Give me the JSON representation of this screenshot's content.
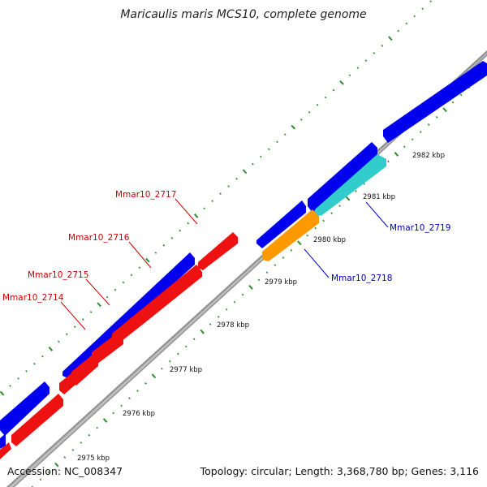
{
  "title": "Maricaulis maris MCS10, complete genome",
  "footer": {
    "accession": "Accession: NC_008347",
    "summary": "Topology: circular; Length: 3,368,780 bp; Genes: 3,116"
  },
  "colors": {
    "background": "#ffffff",
    "backbone": "#8f8f8f",
    "tick_major": "#2e8b2e",
    "tick_minor": "#2e8b2e",
    "cds_forward": "#0000ee",
    "cds_reverse": "#ee1111",
    "gene_orange": "#ff9900",
    "gene_cyan": "#33cccc",
    "label_red": "#cc0000",
    "label_blue": "#0000cc"
  },
  "scale_ticks": [
    {
      "label": "2975 kbp",
      "kbp": 2975
    },
    {
      "label": "2976 kbp",
      "kbp": 2976
    },
    {
      "label": "2977 kbp",
      "kbp": 2977
    },
    {
      "label": "2978 kbp",
      "kbp": 2978
    },
    {
      "label": "2979 kbp",
      "kbp": 2979
    },
    {
      "label": "2980 kbp",
      "kbp": 2980
    },
    {
      "label": "2981 kbp",
      "kbp": 2981
    },
    {
      "label": "2982 kbp",
      "kbp": 2982
    }
  ],
  "gene_labels": [
    {
      "name": "Mmar10_2714",
      "color": "red"
    },
    {
      "name": "Mmar10_2715",
      "color": "red"
    },
    {
      "name": "Mmar10_2716",
      "color": "red"
    },
    {
      "name": "Mmar10_2717",
      "color": "red"
    },
    {
      "name": "Mmar10_2718",
      "color": "blue"
    },
    {
      "name": "Mmar10_2719",
      "color": "blue"
    }
  ]
}
